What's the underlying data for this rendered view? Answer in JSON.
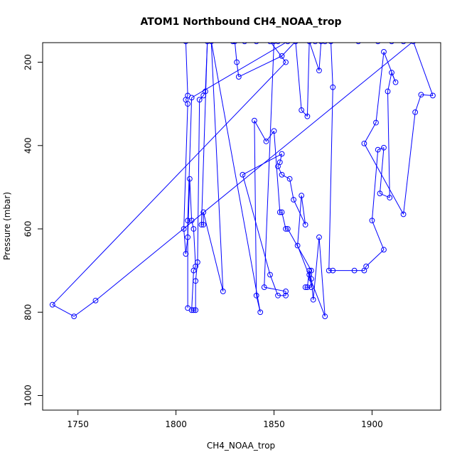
{
  "chart_data": {
    "type": "line",
    "title": "ATOM1 Northbound CH4_NOAA_trop",
    "xlabel": "CH4_NOAA_trop",
    "ylabel": "Pressure (mbar)",
    "xlim": [
      1732,
      1935
    ],
    "ylim": [
      1035,
      153
    ],
    "y_axis_reversed": true,
    "x_ticks": [
      1750,
      1800,
      1850,
      1900
    ],
    "y_ticks": [
      200,
      400,
      600,
      800,
      1000
    ],
    "grid": false,
    "legend": "none",
    "colors": {
      "series": "#0000ff",
      "axis": "#000000",
      "background": "#ffffff"
    },
    "series": [
      {
        "marker": "open-circle",
        "points": [
          [
            1805,
            150
          ],
          [
            1806,
            280
          ],
          [
            1805,
            290
          ],
          [
            1806,
            300
          ],
          [
            1804,
            600
          ],
          [
            1805,
            660
          ],
          [
            1806,
            620
          ],
          [
            1807,
            480
          ],
          [
            1808,
            580
          ],
          [
            1809,
            600
          ],
          [
            1810,
            690
          ],
          [
            1809,
            700
          ],
          [
            1808,
            795
          ],
          [
            1809,
            795
          ],
          [
            1810,
            795
          ],
          [
            1810,
            725
          ],
          [
            1811,
            680
          ],
          [
            1812,
            290
          ],
          [
            1814,
            280
          ],
          [
            1815,
            270
          ],
          [
            1816,
            150
          ],
          [
            1813,
            590
          ],
          [
            1814,
            590
          ],
          [
            1814,
            560
          ],
          [
            1824,
            750
          ],
          [
            1818,
            150
          ],
          [
            1843,
            800
          ],
          [
            1841,
            760
          ],
          [
            1840,
            340
          ],
          [
            1846,
            390
          ],
          [
            1850,
            365
          ],
          [
            1853,
            560
          ],
          [
            1854,
            560
          ],
          [
            1856,
            600
          ],
          [
            1857,
            600
          ],
          [
            1869,
            700
          ],
          [
            1868,
            710
          ],
          [
            1869,
            740
          ],
          [
            1866,
            740
          ],
          [
            1867,
            740
          ],
          [
            1868,
            700
          ],
          [
            1869,
            720
          ],
          [
            1870,
            770
          ],
          [
            1873,
            620
          ],
          [
            1876,
            810
          ],
          [
            1862,
            640
          ],
          [
            1864,
            520
          ],
          [
            1866,
            590
          ],
          [
            1860,
            530
          ],
          [
            1858,
            480
          ],
          [
            1854,
            470
          ],
          [
            1852,
            450
          ],
          [
            1853,
            440
          ],
          [
            1854,
            420
          ],
          [
            1834,
            470
          ],
          [
            1848,
            710
          ],
          [
            1852,
            760
          ],
          [
            1856,
            760
          ],
          [
            1856,
            750
          ],
          [
            1845,
            740
          ],
          [
            1850,
            150
          ],
          [
            1830,
            150
          ],
          [
            1831,
            200
          ],
          [
            1832,
            235
          ],
          [
            1854,
            185
          ],
          [
            1861,
            150
          ],
          [
            1864,
            315
          ],
          [
            1867,
            330
          ],
          [
            1868,
            150
          ],
          [
            1873,
            220
          ],
          [
            1874,
            150
          ],
          [
            1879,
            150
          ],
          [
            1880,
            260
          ],
          [
            1878,
            700
          ],
          [
            1880,
            700
          ],
          [
            1891,
            700
          ],
          [
            1896,
            700
          ],
          [
            1897,
            690
          ],
          [
            1906,
            650
          ],
          [
            1900,
            580
          ],
          [
            1903,
            410
          ],
          [
            1906,
            405
          ],
          [
            1904,
            515
          ],
          [
            1909,
            525
          ],
          [
            1908,
            270
          ],
          [
            1910,
            225
          ],
          [
            1912,
            248
          ],
          [
            1906,
            175
          ],
          [
            1902,
            345
          ],
          [
            1896,
            395
          ],
          [
            1916,
            565
          ],
          [
            1922,
            320
          ],
          [
            1925,
            278
          ],
          [
            1931,
            280
          ],
          [
            1921,
            150
          ],
          [
            1759,
            772
          ],
          [
            1748,
            810
          ],
          [
            1737,
            782
          ],
          [
            1856,
            200
          ],
          [
            1848,
            150
          ],
          [
            1852,
            150
          ],
          [
            1835,
            150
          ],
          [
            1841,
            150
          ],
          [
            1829,
            150
          ],
          [
            1903,
            150
          ],
          [
            1893,
            150
          ],
          [
            1910,
            150
          ],
          [
            1916,
            150
          ],
          [
            1876,
            150
          ],
          [
            1871,
            150
          ],
          [
            1861,
            150
          ],
          [
            1857,
            150
          ],
          [
            1808,
            285
          ],
          [
            1806,
            580
          ],
          [
            1806,
            790
          ]
        ]
      }
    ]
  }
}
